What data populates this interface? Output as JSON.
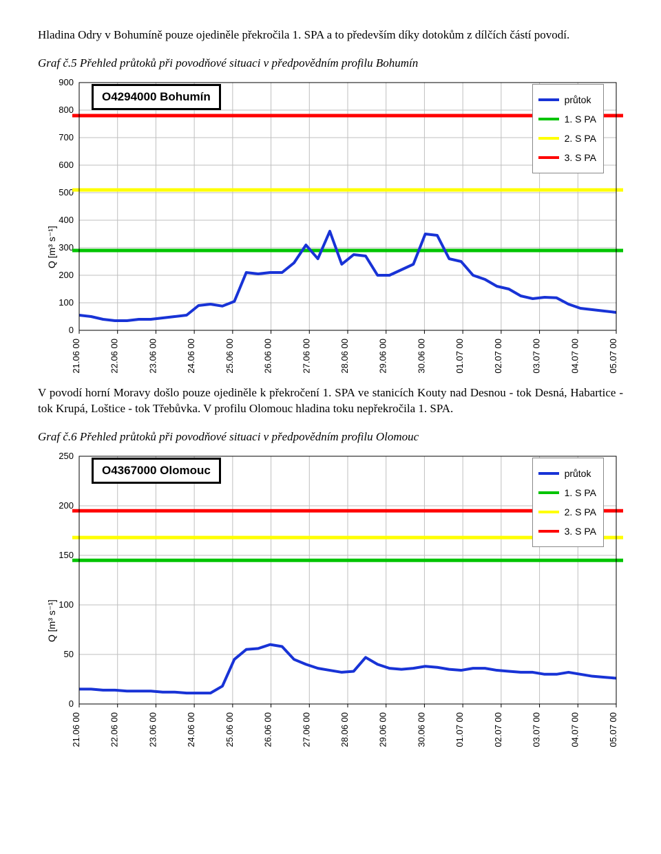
{
  "para1": "Hladina Odry v Bohumíně pouze ojediněle překročila 1. SPA a to především díky dotokům z dílčích částí povodí.",
  "caption1": "Graf č.5 Přehled průtoků při povodňové situaci v předpovědním profilu Bohumín",
  "para2": "V povodí horní Moravy došlo pouze ojediněle k překročení 1. SPA ve stanicích Kouty nad Desnou - tok Desná, Habartice - tok Krupá, Loštice - tok Třebůvka. V profilu Olomouc hladina toku nepřekročila 1. SPA.",
  "caption2": "Graf č.6 Přehled průtoků při povodňové situaci v předpovědním profilu Olomouc",
  "chart1": {
    "type": "line",
    "title": "O4294000 Bohumín",
    "ylabel": "Q [m³ s⁻¹]",
    "xlabels": [
      "21.06 00",
      "22.06 00",
      "23.06 00",
      "24.06 00",
      "25.06 00",
      "26.06 00",
      "27.06 00",
      "28.06 00",
      "29.06 00",
      "30.06 00",
      "01.07 00",
      "02.07 00",
      "03.07 00",
      "04.07 00",
      "05.07 00"
    ],
    "ylim": [
      0,
      900
    ],
    "ytick_step": 100,
    "legend": [
      {
        "label": "průtok",
        "color": "#1833d6",
        "width": 4
      },
      {
        "label": "1. S PA",
        "color": "#00c400",
        "width": 4
      },
      {
        "label": "2. S PA",
        "color": "#ffff00",
        "width": 4
      },
      {
        "label": "3. S PA",
        "color": "#ff0000",
        "width": 4
      }
    ],
    "spa": {
      "spa1": 290,
      "spa2": 510,
      "spa3": 780
    },
    "flow": [
      55,
      50,
      40,
      35,
      35,
      40,
      40,
      45,
      50,
      55,
      90,
      95,
      88,
      105,
      210,
      205,
      210,
      210,
      245,
      310,
      260,
      360,
      240,
      275,
      270,
      200,
      200,
      220,
      240,
      350,
      345,
      260,
      250,
      200,
      185,
      160,
      150,
      125,
      115,
      120,
      118,
      95,
      80,
      75,
      70,
      65
    ],
    "colors": {
      "grid": "#bfbfbf",
      "axis": "#000000",
      "bg": "#ffffff"
    },
    "font": {
      "tick": 13,
      "title": 17
    }
  },
  "chart2": {
    "type": "line",
    "title": "O4367000 Olomouc",
    "ylabel": "Q [m³ s⁻¹]",
    "xlabels": [
      "21.06 00",
      "22.06 00",
      "23.06 00",
      "24.06 00",
      "25.06 00",
      "26.06 00",
      "27.06 00",
      "28.06 00",
      "29.06 00",
      "30.06 00",
      "01.07 00",
      "02.07 00",
      "03.07 00",
      "04.07 00",
      "05.07 00"
    ],
    "ylim": [
      0,
      250
    ],
    "ytick_step": 50,
    "legend": [
      {
        "label": "průtok",
        "color": "#1833d6",
        "width": 4
      },
      {
        "label": "1. S PA",
        "color": "#00c400",
        "width": 4
      },
      {
        "label": "2. S PA",
        "color": "#ffff00",
        "width": 4
      },
      {
        "label": "3. S PA",
        "color": "#ff0000",
        "width": 4
      }
    ],
    "spa": {
      "spa1": 145,
      "spa2": 168,
      "spa3": 195
    },
    "flow": [
      15,
      15,
      14,
      14,
      13,
      13,
      13,
      12,
      12,
      11,
      11,
      11,
      18,
      45,
      55,
      56,
      60,
      58,
      45,
      40,
      36,
      34,
      32,
      33,
      47,
      40,
      36,
      35,
      36,
      38,
      37,
      35,
      34,
      36,
      36,
      34,
      33,
      32,
      32,
      30,
      30,
      32,
      30,
      28,
      27,
      26
    ],
    "colors": {
      "grid": "#bfbfbf",
      "axis": "#000000",
      "bg": "#ffffff"
    },
    "font": {
      "tick": 13,
      "title": 17
    }
  }
}
